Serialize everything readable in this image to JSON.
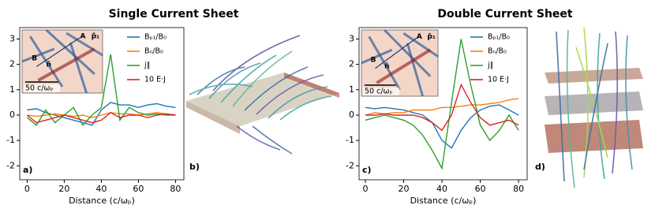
{
  "chart_data": [
    {
      "type": "line",
      "title": "Single Current Sheet",
      "panel_label": "a)",
      "xlabel": "Distance (c/ωₚ)",
      "x": [
        0,
        5,
        10,
        15,
        20,
        25,
        30,
        35,
        40,
        45,
        50,
        55,
        60,
        65,
        70,
        75,
        80
      ],
      "xlim": [
        -4,
        84.5
      ],
      "xticks": [
        0,
        20,
        40,
        60,
        80
      ],
      "ylim": [
        -2.55,
        3.45
      ],
      "yticks": [
        -2,
        -1,
        0,
        1,
        2,
        3
      ],
      "legend": "upper right",
      "series": [
        {
          "name": "Bₚ₁/B₀",
          "color": "#1f77b4",
          "values": [
            0.2,
            0.25,
            0.1,
            0.0,
            -0.1,
            -0.2,
            -0.3,
            -0.4,
            0.2,
            0.5,
            0.4,
            0.4,
            0.3,
            0.4,
            0.45,
            0.35,
            0.3
          ]
        },
        {
          "name": "Bₙ/B₀",
          "color": "#ff7f0e",
          "values": [
            0.0,
            -0.05,
            0.0,
            0.05,
            0.0,
            -0.05,
            0.0,
            -0.1,
            0.0,
            0.1,
            0.05,
            0.05,
            0.0,
            0.05,
            0.1,
            0.05,
            0.0
          ]
        },
        {
          "name": "j∥",
          "color": "#2ca02c",
          "values": [
            -0.1,
            -0.4,
            0.2,
            -0.3,
            0.0,
            0.3,
            -0.4,
            0.0,
            0.3,
            2.4,
            -0.2,
            0.3,
            0.1,
            0.0,
            0.05,
            0.0,
            0.0
          ]
        },
        {
          "name": "10 E·J",
          "color": "#d62728",
          "values": [
            0.0,
            -0.3,
            -0.2,
            -0.1,
            0.0,
            -0.1,
            -0.2,
            -0.3,
            -0.2,
            0.1,
            -0.1,
            0.0,
            0.0,
            -0.1,
            0.0,
            0.05,
            0.0
          ]
        }
      ],
      "inset": {
        "labels": [
          "A",
          "B",
          "p̂₁",
          "n̂"
        ],
        "scale": "50 c/ωₚ"
      }
    },
    {
      "type": "line",
      "title": "Double Current Sheet",
      "panel_label": "c)",
      "xlabel": "Distance (c/ωₚ)",
      "x": [
        0,
        5,
        10,
        15,
        20,
        25,
        30,
        35,
        40,
        45,
        50,
        55,
        60,
        65,
        70,
        75,
        80
      ],
      "xlim": [
        -3.3,
        84.5
      ],
      "xticks": [
        0,
        20,
        40,
        60,
        80
      ],
      "ylim": [
        -2.55,
        3.45
      ],
      "yticks": [
        -2,
        -1,
        0,
        1,
        2,
        3
      ],
      "legend": "upper right",
      "series": [
        {
          "name": "Bₚ₁/B₀",
          "color": "#1f77b4",
          "values": [
            0.3,
            0.25,
            0.3,
            0.25,
            0.2,
            0.1,
            0.0,
            -0.3,
            -1.0,
            -1.3,
            -0.6,
            -0.1,
            0.2,
            0.35,
            0.4,
            0.2,
            0.0
          ]
        },
        {
          "name": "Bₙ/B₀",
          "color": "#ff7f0e",
          "values": [
            0.0,
            0.1,
            0.05,
            0.1,
            0.1,
            0.2,
            0.2,
            0.2,
            0.3,
            0.3,
            0.35,
            0.4,
            0.4,
            0.45,
            0.5,
            0.6,
            0.65
          ]
        },
        {
          "name": "j∥",
          "color": "#2ca02c",
          "values": [
            -0.2,
            -0.1,
            0.0,
            -0.1,
            -0.2,
            -0.4,
            -0.8,
            -1.4,
            -2.1,
            0.5,
            3.0,
            1.2,
            -0.4,
            -1.0,
            -0.6,
            0.0,
            -0.6
          ]
        },
        {
          "name": "10 E·J",
          "color": "#d62728",
          "values": [
            0.0,
            0.0,
            0.05,
            0.0,
            0.0,
            0.0,
            -0.1,
            -0.3,
            -0.6,
            0.0,
            1.2,
            0.5,
            -0.1,
            -0.4,
            -0.3,
            -0.2,
            -0.4
          ]
        }
      ],
      "inset": {
        "labels": [
          "A",
          "B",
          "p̂₁",
          "n̂"
        ],
        "scale": "50 c/ωₚ"
      }
    }
  ],
  "panels": [
    {
      "label": "b)"
    },
    {
      "label": "d)"
    }
  ]
}
